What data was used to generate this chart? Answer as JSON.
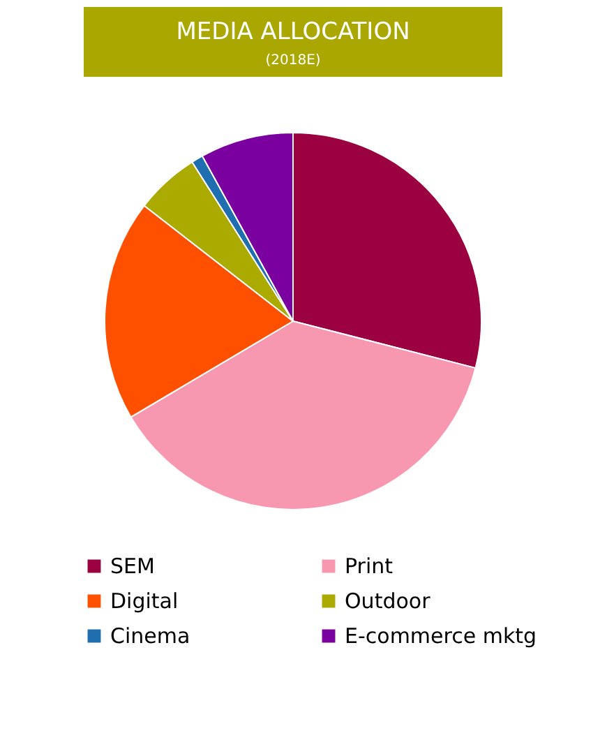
{
  "chart_data": {
    "type": "pie",
    "title": "MEDIA ALLOCATION",
    "subtitle": "(2018E)",
    "categories": [
      "SEM",
      "Print",
      "Digital",
      "Outdoor",
      "Cinema",
      "E-commerce mktg"
    ],
    "values": [
      29,
      37.5,
      19,
      5.5,
      1,
      8
    ],
    "colors": [
      "#9b0040",
      "#f797b0",
      "#ff5000",
      "#aaaa00",
      "#1f6fb0",
      "#7a00a0"
    ],
    "legend": "bottom"
  }
}
